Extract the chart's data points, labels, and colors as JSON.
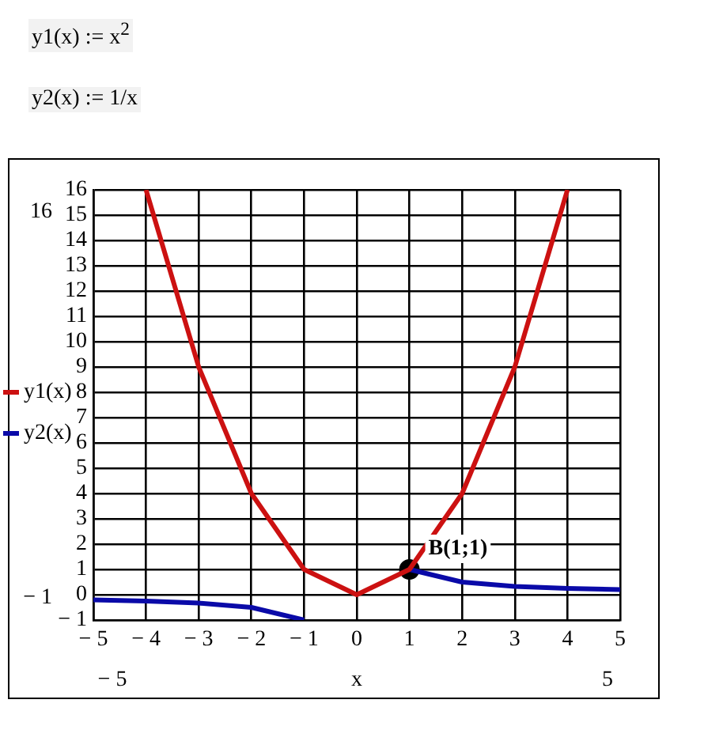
{
  "chart_data": {
    "type": "line",
    "subtitle": "y1(x) := x$^{2}$",
    "title": "y2(x) := 1/x",
    "xlabel": "x",
    "xlim": [
      -5,
      5
    ],
    "xticks": [
      -5,
      -4,
      -3,
      -2,
      -1,
      0,
      1,
      2,
      3,
      4,
      5
    ],
    "ylim": [
      -1,
      16
    ],
    "yticks": [
      -1,
      0,
      1,
      2,
      3,
      4,
      5,
      6,
      7,
      8,
      9,
      10,
      11,
      12,
      13,
      14,
      15,
      16
    ],
    "grid": true,
    "legend": "left",
    "marker": "none",
    "line_style": "solid",
    "series": [
      {
        "name": "y1(x)",
        "color": "#cc1111",
        "x": [
          -4,
          -3,
          -2,
          -1,
          0,
          1,
          2,
          3,
          4
        ],
        "values": [
          16,
          9,
          4,
          1,
          0,
          1,
          4,
          9,
          16
        ]
      },
      {
        "name": "y2(x)",
        "color": "#0a0aa8",
        "x": [
          -5,
          -4,
          -3,
          -2,
          -1,
          0,
          1,
          2,
          3,
          4,
          5
        ],
        "values": [
          -0.2,
          -0.25,
          -0.33,
          -0.5,
          -1,
          null,
          1,
          0.5,
          0.33,
          0.25,
          0.2
        ]
      },
      {
        "type": "scatter",
        "color": "#000000",
        "x": [
          1
        ],
        "values": [
          1
        ],
        "marker": "circle"
      }
    ],
    "annotations": [
      "16",
      "− 1",
      "− 5",
      "5",
      {
        "text": "B(1;1)",
        "x": 1,
        "y": 1
      }
    ]
  }
}
